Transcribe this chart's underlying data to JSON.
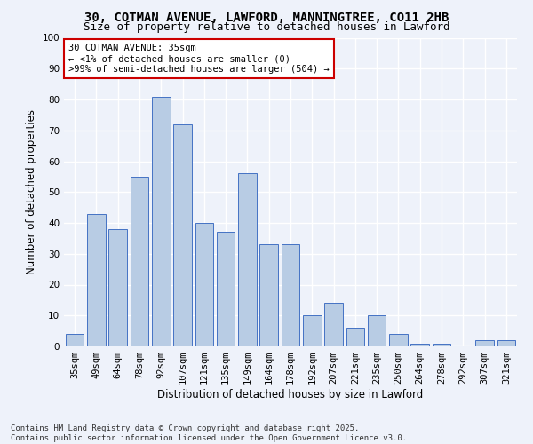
{
  "title_line1": "30, COTMAN AVENUE, LAWFORD, MANNINGTREE, CO11 2HB",
  "title_line2": "Size of property relative to detached houses in Lawford",
  "xlabel": "Distribution of detached houses by size in Lawford",
  "ylabel": "Number of detached properties",
  "categories": [
    "35sqm",
    "49sqm",
    "64sqm",
    "78sqm",
    "92sqm",
    "107sqm",
    "121sqm",
    "135sqm",
    "149sqm",
    "164sqm",
    "178sqm",
    "192sqm",
    "207sqm",
    "221sqm",
    "235sqm",
    "250sqm",
    "264sqm",
    "278sqm",
    "292sqm",
    "307sqm",
    "321sqm"
  ],
  "values": [
    4,
    43,
    38,
    55,
    81,
    72,
    40,
    37,
    56,
    33,
    33,
    10,
    14,
    6,
    10,
    4,
    1,
    1,
    0,
    2,
    2
  ],
  "bar_color": "#b8cce4",
  "bar_edge_color": "#4472c4",
  "background_color": "#eef2fa",
  "grid_color": "#ffffff",
  "annotation_box_text": "30 COTMAN AVENUE: 35sqm\n← <1% of detached houses are smaller (0)\n>99% of semi-detached houses are larger (504) →",
  "annotation_box_color": "#cc0000",
  "annotation_box_fill": "#ffffff",
  "ylim": [
    0,
    100
  ],
  "yticks": [
    0,
    10,
    20,
    30,
    40,
    50,
    60,
    70,
    80,
    90,
    100
  ],
  "footnote": "Contains HM Land Registry data © Crown copyright and database right 2025.\nContains public sector information licensed under the Open Government Licence v3.0.",
  "title_fontsize": 10,
  "subtitle_fontsize": 9,
  "axis_label_fontsize": 8.5,
  "tick_fontsize": 7.5,
  "annotation_fontsize": 7.5,
  "footnote_fontsize": 6.5
}
